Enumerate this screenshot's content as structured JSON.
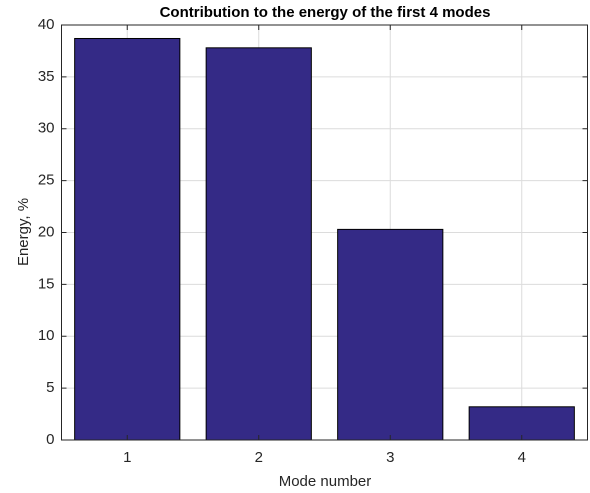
{
  "chart_data": {
    "type": "bar",
    "title": "Contribution to the energy of the first 4 modes",
    "x_label": "Mode number",
    "y_label": "Energy, %",
    "categories": [
      "1",
      "2",
      "3",
      "4"
    ],
    "values": [
      38.7,
      37.8,
      20.3,
      3.2
    ],
    "color": "#342a86",
    "ylim": [
      0,
      40
    ],
    "yticks": [
      0,
      5,
      10,
      15,
      20,
      25,
      30,
      35,
      40
    ],
    "grid": true
  }
}
